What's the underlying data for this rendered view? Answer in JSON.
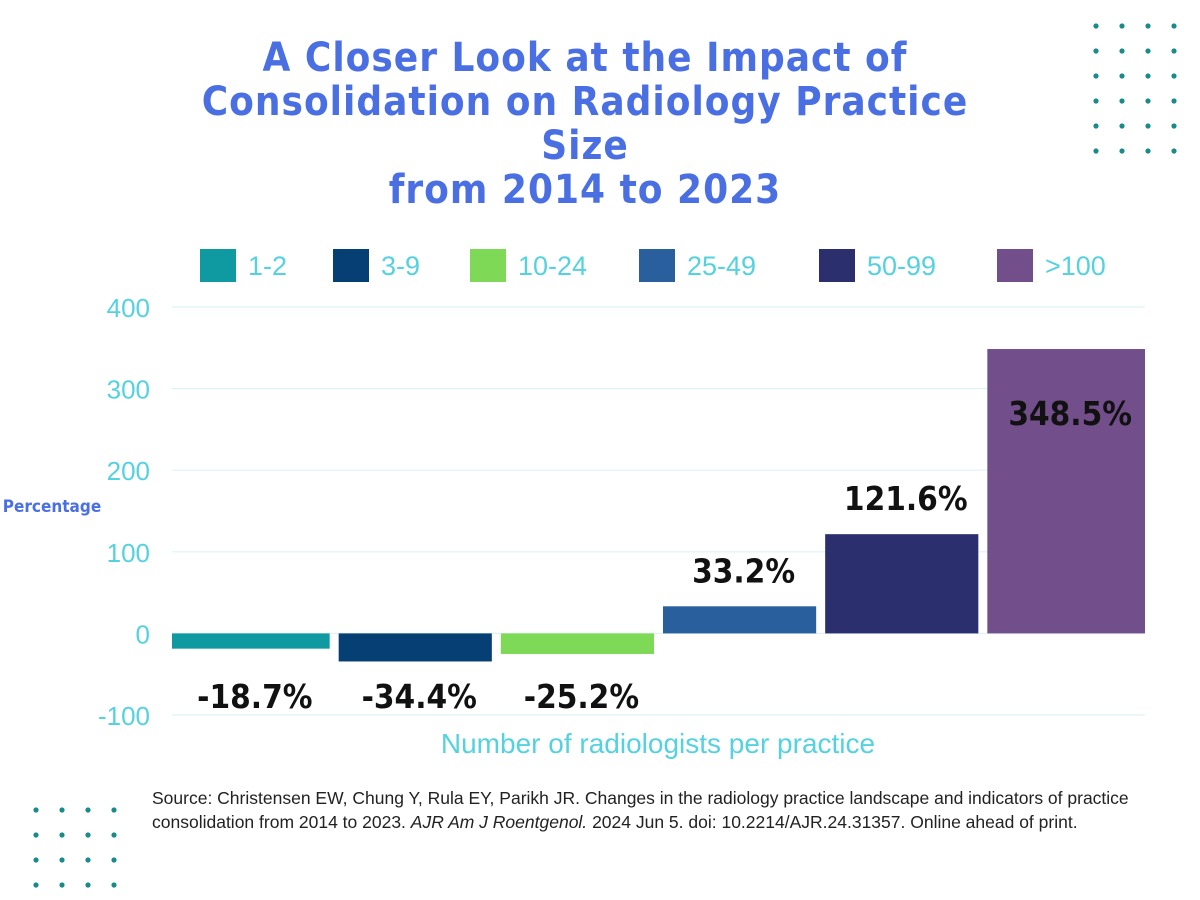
{
  "title_lines": [
    "A Closer Look at the Impact of",
    "Consolidation on Radiology Practice Size",
    "from 2014 to 2023"
  ],
  "colors": {
    "title": "#4a6fe3",
    "axis_text": "#55d2e0",
    "ylabel_text": "#4a6fe3",
    "grid": "#dff3f7",
    "dots": "#1a8a8a",
    "label_text": "#111111"
  },
  "chart_data": {
    "type": "bar",
    "categories": [
      "1-2",
      "3-9",
      "10-24",
      "25-49",
      "50-99",
      ">100"
    ],
    "values": [
      -18.7,
      -34.4,
      -25.2,
      33.2,
      121.6,
      348.5
    ],
    "data_labels": [
      "-18.7%",
      "-34.4%",
      "-25.2%",
      "33.2%",
      "121.6%",
      "348.5%"
    ],
    "colors": [
      "#0e9aa0",
      "#063f73",
      "#7ed957",
      "#2a5f9e",
      "#2b2f6e",
      "#724f8b"
    ],
    "legend": [
      "1-2",
      "3-9",
      "10-24",
      "25-49",
      "50-99",
      ">100"
    ],
    "legend_position": "top",
    "xlabel": "Number of radiologists per practice",
    "ylabel": "Percentage",
    "ylim": [
      -100,
      400
    ],
    "yticks": [
      400,
      300,
      200,
      100,
      0,
      -100
    ],
    "ytick_labels": [
      "400",
      "300",
      "200",
      "100",
      "0",
      "-100"
    ],
    "grid": true
  },
  "source": {
    "prefix": "Source: Christensen EW, Chung Y, Rula EY, Parikh JR. Changes in the radiology practice landscape and indicators of practice consolidation from 2014 to 2023.",
    "journal": "AJR Am J Roentgenol.",
    "suffix": "2024 Jun 5. doi: 10.2214/AJR.24.31357. Online ahead of print."
  }
}
